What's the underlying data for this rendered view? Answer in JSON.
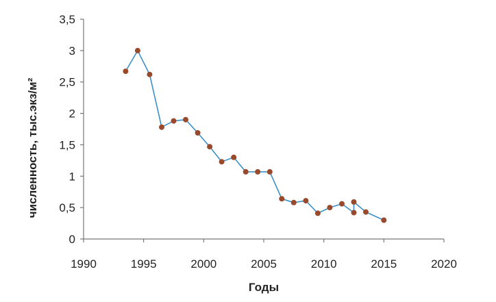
{
  "chart_data": {
    "type": "line",
    "title": "",
    "xlabel": "Годы",
    "ylabel": "численность, тыс.экз/м²",
    "xlim": [
      1990,
      2020
    ],
    "ylim": [
      0,
      3.5
    ],
    "x_ticks": [
      1990,
      1995,
      2000,
      2005,
      2010,
      2015,
      2020
    ],
    "x_tick_labels": [
      "1990",
      "1995",
      "2000",
      "2005",
      "2010",
      "2015",
      "2020"
    ],
    "y_ticks": [
      0,
      0.5,
      1,
      1.5,
      2,
      2.5,
      3,
      3.5
    ],
    "y_tick_labels": [
      "0",
      "0,5",
      "1",
      "1,5",
      "2",
      "2,5",
      "3",
      "3,5"
    ],
    "grid": false,
    "legend": "none",
    "line_color": "#3a8fc8",
    "marker_color": "#9a4a2c",
    "series": [
      {
        "points": [
          [
            1993.5,
            2.67
          ],
          [
            1994.5,
            3.0
          ],
          [
            1995.5,
            2.62
          ],
          [
            1996.5,
            1.78
          ],
          [
            1997.5,
            1.88
          ],
          [
            1998.5,
            1.9
          ],
          [
            1999.5,
            1.69
          ],
          [
            2000.5,
            1.47
          ],
          [
            2001.5,
            1.23
          ],
          [
            2002.5,
            1.3
          ],
          [
            2003.5,
            1.07
          ],
          [
            2004.5,
            1.07
          ],
          [
            2005.5,
            1.07
          ],
          [
            2006.5,
            0.64
          ],
          [
            2007.5,
            0.58
          ],
          [
            2008.5,
            0.61
          ],
          [
            2009.5,
            0.41
          ],
          [
            2010.5,
            0.5
          ],
          [
            2011.5,
            0.56
          ],
          [
            2012.5,
            0.42
          ],
          [
            2012.5,
            0.59
          ],
          [
            2013.5,
            0.43
          ],
          [
            2015.0,
            0.3
          ]
        ]
      }
    ]
  }
}
